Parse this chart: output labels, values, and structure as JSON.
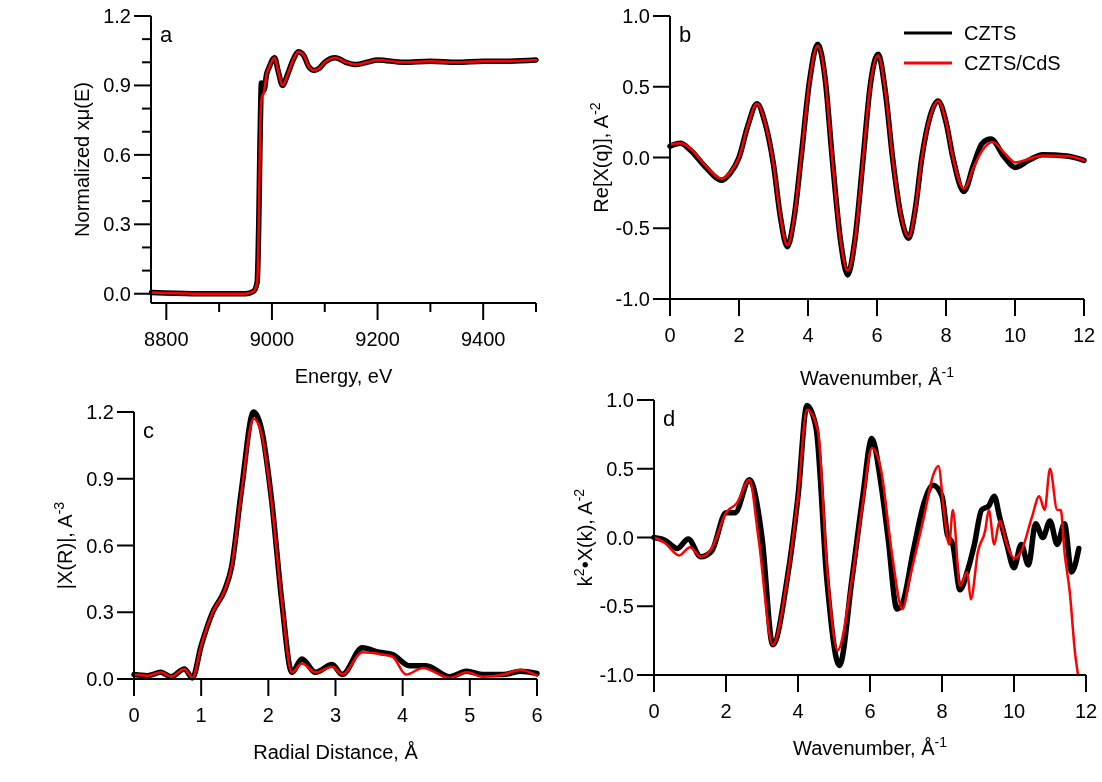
{
  "chart_data": [
    {
      "type": "line",
      "xlabel": "Energy, eV",
      "ylabel": "Normalized xμ(E)",
      "annotations": [
        "a"
      ],
      "xlim": [
        8771,
        9500
      ],
      "xticks": [
        8800,
        {
          "value": 8900,
          "label": null
        },
        9000,
        {
          "value": 9100,
          "label": null
        },
        9200,
        {
          "value": 9300,
          "label": null
        },
        9400,
        {
          "value": 9500,
          "label": null
        }
      ],
      "ylim": [
        -0.04,
        1.2
      ],
      "yticks": [
        {
          "value": 0,
          "label": "0.0"
        },
        {
          "value": 0.1,
          "label": null
        },
        {
          "value": 0.2,
          "label": null
        },
        {
          "value": 0.3,
          "label": "0.3"
        },
        {
          "value": 0.4,
          "label": null
        },
        {
          "value": 0.5,
          "label": null
        },
        {
          "value": 0.6,
          "label": "0.6"
        },
        {
          "value": 0.7,
          "label": null
        },
        {
          "value": 0.8,
          "label": null
        },
        {
          "value": 0.9,
          "label": "0.9"
        },
        {
          "value": 1.0,
          "label": null
        },
        {
          "value": 1.1,
          "label": null
        },
        {
          "value": 1.2,
          "label": "1.2"
        }
      ],
      "series": [
        {
          "color": "#000000",
          "x": [
            8772,
            8850,
            8950,
            8965,
            8972,
            8975,
            8977,
            8979,
            8980,
            8985,
            8990,
            8995,
            9005,
            9012,
            9020,
            9030,
            9040,
            9050,
            9060,
            9070,
            9080,
            9090,
            9100,
            9120,
            9140,
            9160,
            9180,
            9200,
            9250,
            9300,
            9350,
            9400,
            9450,
            9500
          ],
          "values": [
            0.005,
            0,
            0,
            0.01,
            0.05,
            0.3,
            0.6,
            0.85,
            0.91,
            0.88,
            0.95,
            0.98,
            1.02,
            0.96,
            0.9,
            0.95,
            1.01,
            1.045,
            1.03,
            0.98,
            0.965,
            0.975,
            1.0,
            1.02,
            1.0,
            0.99,
            1.0,
            1.01,
            1.0,
            1.005,
            1.0,
            1.005,
            1.005,
            1.01
          ]
        },
        {
          "color": "#ff0000",
          "x": [
            8772,
            8850,
            8950,
            8965,
            8972,
            8975,
            8977,
            8979,
            8981,
            8985,
            8990,
            8995,
            9005,
            9012,
            9020,
            9030,
            9040,
            9050,
            9060,
            9070,
            9080,
            9090,
            9100,
            9120,
            9140,
            9160,
            9180,
            9200,
            9250,
            9300,
            9350,
            9400,
            9450,
            9500
          ],
          "values": [
            0.005,
            0,
            0,
            0.01,
            0.05,
            0.3,
            0.6,
            0.8,
            0.85,
            0.87,
            0.95,
            0.98,
            1.02,
            0.96,
            0.9,
            0.95,
            1.01,
            1.045,
            1.03,
            0.98,
            0.965,
            0.975,
            1.0,
            1.02,
            1.0,
            0.99,
            1.0,
            1.01,
            1.0,
            1.005,
            1.0,
            1.005,
            1.005,
            1.01
          ]
        }
      ]
    },
    {
      "type": "line",
      "xlabel": "Wavenumber, Å$^{-1}$",
      "ylabel": "Re[X(q)], A$^{-2}$",
      "annotations": [
        "b"
      ],
      "legend": "top right",
      "xlim": [
        0,
        12
      ],
      "xticks": [
        0,
        2,
        4,
        6,
        8,
        10,
        12
      ],
      "ylim": [
        -1,
        1
      ],
      "yticks": [
        {
          "value": -1,
          "label": "-1.0"
        },
        {
          "value": -0.5,
          "label": "-0.5"
        },
        {
          "value": 0,
          "label": "0.0"
        },
        {
          "value": 0.5,
          "label": "0.5"
        },
        {
          "value": 1,
          "label": "1.0"
        }
      ],
      "series": [
        {
          "name": "CZTS",
          "color": "#000000",
          "x": [
            0,
            0.3,
            0.6,
            1.0,
            1.5,
            1.75,
            2.0,
            2.25,
            2.52,
            2.75,
            3.0,
            3.2,
            3.4,
            3.6,
            3.8,
            4.05,
            4.28,
            4.5,
            4.7,
            4.95,
            5.15,
            5.35,
            5.6,
            5.8,
            6.03,
            6.25,
            6.45,
            6.7,
            6.92,
            7.1,
            7.3,
            7.55,
            7.77,
            8.0,
            8.2,
            8.52,
            8.8,
            9.05,
            9.3,
            9.7,
            10.0,
            10.4,
            10.8,
            11.5,
            12
          ],
          "values": [
            0.08,
            0.1,
            0.05,
            -0.06,
            -0.16,
            -0.11,
            0.0,
            0.22,
            0.38,
            0.25,
            -0.05,
            -0.42,
            -0.63,
            -0.42,
            0.0,
            0.55,
            0.8,
            0.55,
            0.0,
            -0.6,
            -0.83,
            -0.6,
            0.0,
            0.5,
            0.73,
            0.45,
            0.0,
            -0.42,
            -0.57,
            -0.38,
            0.0,
            0.3,
            0.4,
            0.25,
            0.0,
            -0.24,
            -0.05,
            0.1,
            0.13,
            0.0,
            -0.07,
            -0.02,
            0.02,
            0.01,
            -0.02
          ]
        },
        {
          "name": "CZTS/CdS",
          "color": "#ff0000",
          "x": [
            0,
            0.3,
            0.6,
            1.0,
            1.5,
            1.75,
            2.0,
            2.25,
            2.52,
            2.75,
            3.0,
            3.2,
            3.4,
            3.6,
            3.8,
            4.05,
            4.28,
            4.5,
            4.7,
            4.95,
            5.15,
            5.35,
            5.6,
            5.8,
            6.03,
            6.25,
            6.45,
            6.7,
            6.92,
            7.1,
            7.3,
            7.55,
            7.77,
            8.0,
            8.2,
            8.52,
            8.8,
            9.05,
            9.35,
            9.7,
            10.0,
            10.4,
            10.8,
            11.5,
            12
          ],
          "values": [
            0.09,
            0.1,
            0.06,
            -0.05,
            -0.15,
            -0.1,
            0.0,
            0.22,
            0.38,
            0.25,
            -0.05,
            -0.42,
            -0.62,
            -0.42,
            0.0,
            0.55,
            0.79,
            0.55,
            0.0,
            -0.6,
            -0.8,
            -0.6,
            0.0,
            0.5,
            0.72,
            0.45,
            0.0,
            -0.42,
            -0.56,
            -0.38,
            0.0,
            0.3,
            0.4,
            0.25,
            0.0,
            -0.22,
            -0.07,
            0.05,
            0.11,
            0.03,
            -0.035,
            -0.01,
            0.015,
            0.01,
            -0.02
          ]
        }
      ]
    },
    {
      "type": "line",
      "xlabel": "Radial Distance, Å",
      "ylabel": "|X(R)|, A$^{-3}$",
      "annotations": [
        "c"
      ],
      "xlim": [
        0,
        6
      ],
      "xticks": [
        0,
        1,
        2,
        3,
        4,
        5,
        6
      ],
      "ylim": [
        0,
        1.2
      ],
      "yticks": [
        {
          "value": 0,
          "label": "0.0"
        },
        {
          "value": 0.3,
          "label": "0.3"
        },
        {
          "value": 0.6,
          "label": "0.6"
        },
        {
          "value": 0.9,
          "label": "0.9"
        },
        {
          "value": 1.2,
          "label": "1.2"
        }
      ],
      "series": [
        {
          "color": "#000000",
          "x": [
            0,
            0.2,
            0.4,
            0.55,
            0.75,
            0.87,
            1.0,
            1.17,
            1.35,
            1.45,
            1.6,
            1.78,
            1.9,
            2.05,
            2.2,
            2.35,
            2.5,
            2.7,
            2.95,
            3.1,
            3.4,
            3.65,
            3.85,
            4.1,
            4.35,
            4.7,
            4.95,
            5.2,
            5.5,
            5.75,
            6.0
          ],
          "values": [
            0.02,
            0.015,
            0.03,
            0.01,
            0.045,
            0.005,
            0.15,
            0.3,
            0.4,
            0.5,
            0.85,
            1.2,
            1.12,
            0.8,
            0.35,
            0.03,
            0.09,
            0.03,
            0.065,
            0.02,
            0.14,
            0.12,
            0.11,
            0.06,
            0.06,
            0.01,
            0.035,
            0.02,
            0.02,
            0.035,
            0.025
          ]
        },
        {
          "color": "#ff0000",
          "x": [
            0,
            0.2,
            0.4,
            0.55,
            0.75,
            0.87,
            1.0,
            1.17,
            1.35,
            1.45,
            1.6,
            1.78,
            1.9,
            2.05,
            2.2,
            2.35,
            2.5,
            2.7,
            2.95,
            3.1,
            3.4,
            3.7,
            3.85,
            4.05,
            4.3,
            4.7,
            4.95,
            5.2,
            5.5,
            5.75,
            6.0
          ],
          "values": [
            0.02,
            0.015,
            0.03,
            0.01,
            0.045,
            0.005,
            0.15,
            0.3,
            0.4,
            0.5,
            0.84,
            1.17,
            1.1,
            0.79,
            0.35,
            0.03,
            0.07,
            0.03,
            0.055,
            0.02,
            0.12,
            0.11,
            0.1,
            0.02,
            0.05,
            0.005,
            0.03,
            0.01,
            0.02,
            0.04,
            0.015
          ]
        }
      ]
    },
    {
      "type": "line",
      "xlabel": "Wavenumber, Å$^{-1}$",
      "ylabel": "k$^{2}$•X(k), A$^{-2}$",
      "annotations": [
        "d"
      ],
      "xlim": [
        0,
        12
      ],
      "xticks": [
        0,
        2,
        4,
        6,
        8,
        10,
        12
      ],
      "ylim": [
        -1,
        1
      ],
      "yticks": [
        {
          "value": -1,
          "label": "-1.0"
        },
        {
          "value": -0.5,
          "label": "-0.5"
        },
        {
          "value": 0,
          "label": "0.0"
        },
        {
          "value": 0.5,
          "label": "0.5"
        },
        {
          "value": 1,
          "label": "1.0"
        }
      ],
      "series": [
        {
          "color": "#000000",
          "x": [
            0,
            0.3,
            0.65,
            0.95,
            1.3,
            1.6,
            2.0,
            2.25,
            2.65,
            3.0,
            3.3,
            3.7,
            4.0,
            4.25,
            4.5,
            4.8,
            5.15,
            5.5,
            5.8,
            6.05,
            6.3,
            6.5,
            6.75,
            6.9,
            7.2,
            7.5,
            7.75,
            8.0,
            8.15,
            8.3,
            8.5,
            8.7,
            8.9,
            9.1,
            9.3,
            9.45,
            9.6,
            9.8,
            10.0,
            10.2,
            10.4,
            10.6,
            10.8,
            11.0,
            11.2,
            11.4,
            11.6,
            11.8
          ],
          "values": [
            0,
            -0.02,
            -0.08,
            -0.01,
            -0.14,
            -0.1,
            0.18,
            0.18,
            0.42,
            0.0,
            -0.78,
            -0.3,
            0.3,
            0.96,
            0.8,
            -0.3,
            -0.93,
            -0.3,
            0.3,
            0.72,
            0.4,
            0.0,
            -0.52,
            -0.48,
            -0.1,
            0.25,
            0.38,
            0.3,
            0.02,
            -0.05,
            -0.38,
            -0.25,
            -0.05,
            0.2,
            0.23,
            0.3,
            0.15,
            -0.05,
            -0.22,
            -0.05,
            -0.2,
            0.1,
            0.0,
            0.12,
            -0.05,
            0.1,
            -0.25,
            -0.08
          ]
        },
        {
          "color": "#ff0000",
          "x": [
            0,
            0.3,
            0.7,
            1.0,
            1.3,
            1.6,
            2.0,
            2.3,
            2.65,
            2.9,
            3.3,
            3.7,
            4.0,
            4.25,
            4.55,
            4.8,
            5.1,
            5.5,
            5.8,
            6.05,
            6.3,
            6.6,
            6.9,
            7.1,
            7.5,
            7.75,
            7.9,
            8.05,
            8.2,
            8.3,
            8.5,
            8.7,
            8.8,
            9.0,
            9.2,
            9.3,
            9.45,
            9.6,
            9.8,
            10.0,
            10.2,
            10.5,
            10.7,
            10.85,
            11.0,
            11.2,
            11.3,
            11.4,
            11.55,
            11.7,
            11.78
          ],
          "values": [
            0,
            -0.04,
            -0.13,
            -0.07,
            -0.14,
            -0.08,
            0.18,
            0.25,
            0.42,
            0.0,
            -0.78,
            -0.3,
            0.3,
            0.93,
            0.78,
            -0.2,
            -0.82,
            -0.3,
            0.25,
            0.65,
            0.5,
            -0.1,
            -0.52,
            -0.3,
            0.15,
            0.45,
            0.52,
            0.2,
            -0.05,
            0.2,
            -0.35,
            -0.25,
            -0.45,
            -0.1,
            0.05,
            0.2,
            -0.05,
            0.12,
            -0.05,
            -0.15,
            -0.1,
            0.15,
            0.3,
            0.2,
            0.5,
            0.2,
            0.2,
            -0.1,
            -0.4,
            -0.85,
            -1.0
          ]
        }
      ]
    }
  ]
}
